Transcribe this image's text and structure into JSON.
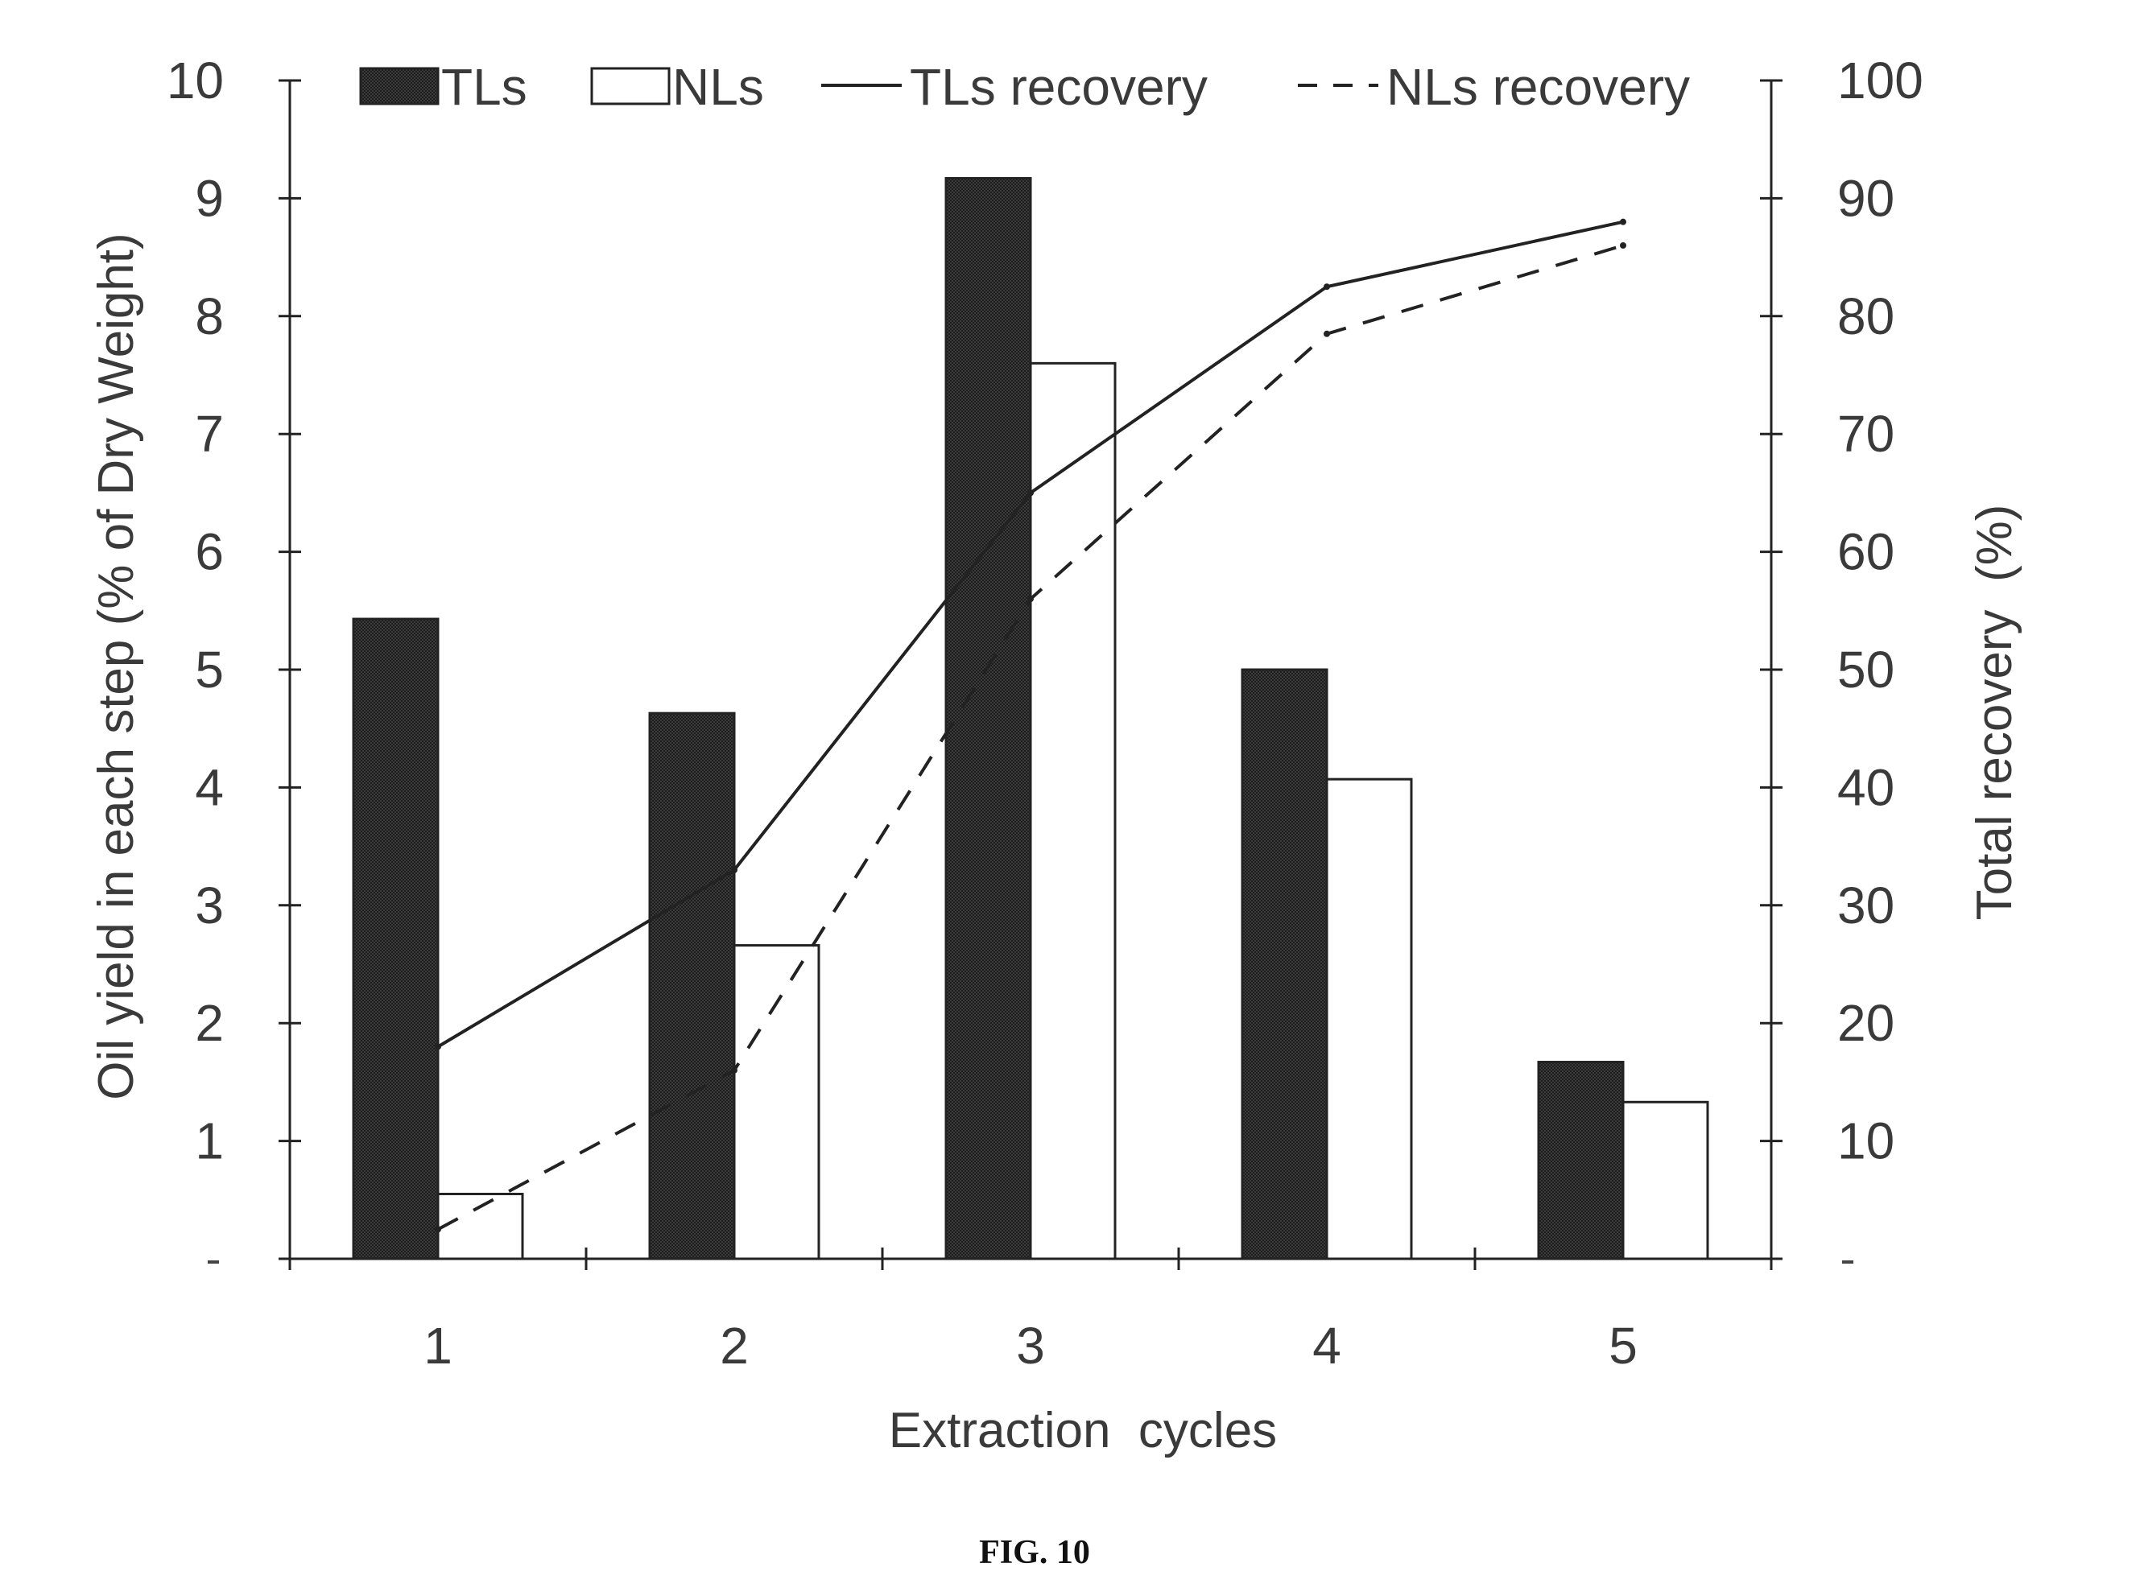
{
  "figure": {
    "caption": "FIG. 10"
  },
  "chart_data": {
    "type": "bar",
    "categories": [
      "1",
      "2",
      "3",
      "4",
      "5"
    ],
    "xlabel": "Extraction  cycles",
    "ylabel": "Oil yield in each step (% of Dry Weight)",
    "y2label": "Total recovery  (%)",
    "ylim": [
      0,
      10
    ],
    "y2lim": [
      0,
      100
    ],
    "yticks": [
      "",
      "1",
      "2",
      "3",
      "4",
      "5",
      "6",
      "7",
      "8",
      "9",
      "10"
    ],
    "y2ticks": [
      "",
      "10",
      "20",
      "30",
      "40",
      "50",
      "60",
      "70",
      "80",
      "90",
      "100"
    ],
    "grid": false,
    "legend_position": "top",
    "series": [
      {
        "name": "TLs",
        "type": "bar",
        "axis": "left",
        "values": [
          5.43,
          4.63,
          9.17,
          5.0,
          1.67
        ],
        "color": "#333333"
      },
      {
        "name": "NLs",
        "type": "bar",
        "axis": "left",
        "values": [
          0.55,
          2.66,
          7.6,
          4.07,
          1.33
        ],
        "color": "#ffffff"
      },
      {
        "name": "TLs recovery",
        "type": "line",
        "axis": "right",
        "values": [
          18,
          33,
          65,
          82.5,
          88
        ],
        "color": "#222222",
        "dash": "solid"
      },
      {
        "name": "NLs recovery",
        "type": "line",
        "axis": "right",
        "values": [
          2.5,
          16,
          56,
          78.5,
          86
        ],
        "color": "#222222",
        "dash": "dashed"
      }
    ]
  }
}
